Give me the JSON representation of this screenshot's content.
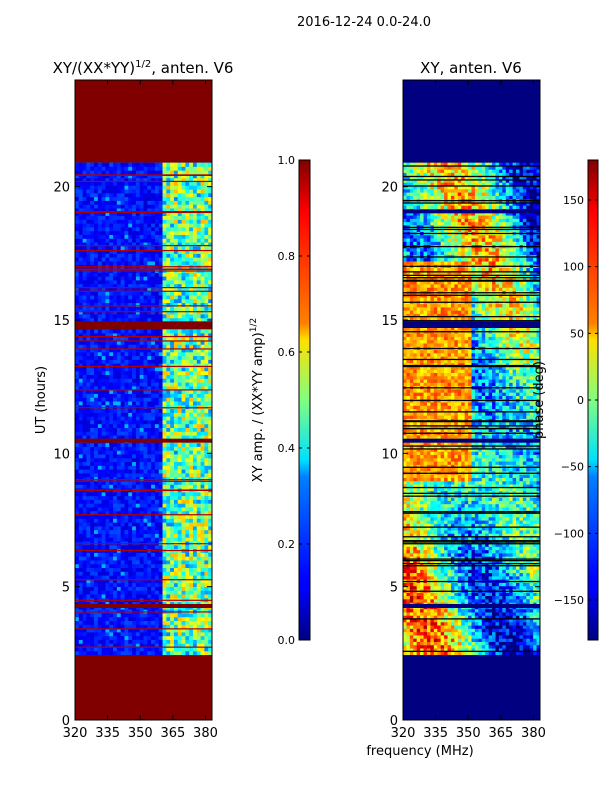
{
  "suptitle": "2016-12-24 0.0-24.0",
  "colors": {
    "saturated": "#800000",
    "background": "#000080",
    "axis": "#000000"
  },
  "chart_data": [
    {
      "type": "heatmap",
      "title_main": "XY/(XX*YY)",
      "title_exp": "1/2",
      "title_tail": ", anten. V6",
      "xlabel": "",
      "ylabel": "UT (hours)",
      "xlim": [
        320,
        383
      ],
      "ylim": [
        0,
        24
      ],
      "xticks": [
        "320",
        "335",
        "350",
        "365",
        "380"
      ],
      "yticks": [
        "0",
        "5",
        "10",
        "15",
        "20"
      ],
      "xtick_values": [
        320,
        335,
        350,
        365,
        380
      ],
      "ytick_values": [
        0,
        5,
        10,
        15,
        20
      ],
      "saturated_hours": [
        [
          0,
          2.45
        ],
        [
          20.9,
          24
        ],
        [
          14.65,
          14.95
        ],
        [
          10.4,
          10.55
        ],
        [
          4.2,
          4.35
        ]
      ],
      "data_hours": [
        2.45,
        20.9
      ],
      "rfi_freq_start": 359.5,
      "colorbar": {
        "label_main": "XY amp. / (XX*YY amp)",
        "label_exp": "1/2",
        "range": [
          0.0,
          1.0
        ],
        "ticks": [
          "0.0",
          "0.2",
          "0.4",
          "0.6",
          "0.8",
          "1.0"
        ],
        "tick_values": [
          0.0,
          0.2,
          0.4,
          0.6,
          0.8,
          1.0
        ]
      }
    },
    {
      "type": "heatmap",
      "title": "XY, anten. V6",
      "xlabel": "frequency (MHz)",
      "ylabel": "",
      "xlim": [
        320,
        383
      ],
      "ylim": [
        0,
        24
      ],
      "xticks": [
        "320",
        "335",
        "350",
        "365",
        "380"
      ],
      "yticks": [
        "0",
        "5",
        "10",
        "15",
        "20"
      ],
      "xtick_values": [
        320,
        335,
        350,
        365,
        380
      ],
      "ytick_values": [
        0,
        5,
        10,
        15,
        20
      ],
      "data_hours": [
        2.45,
        20.9
      ],
      "colorbar": {
        "label": "phase (deg)",
        "range": [
          -180,
          180
        ],
        "ticks": [
          "−150",
          "−100",
          "−50",
          "0",
          "50",
          "100",
          "150"
        ],
        "tick_values": [
          -150,
          -100,
          -50,
          0,
          50,
          100,
          150
        ]
      }
    }
  ]
}
